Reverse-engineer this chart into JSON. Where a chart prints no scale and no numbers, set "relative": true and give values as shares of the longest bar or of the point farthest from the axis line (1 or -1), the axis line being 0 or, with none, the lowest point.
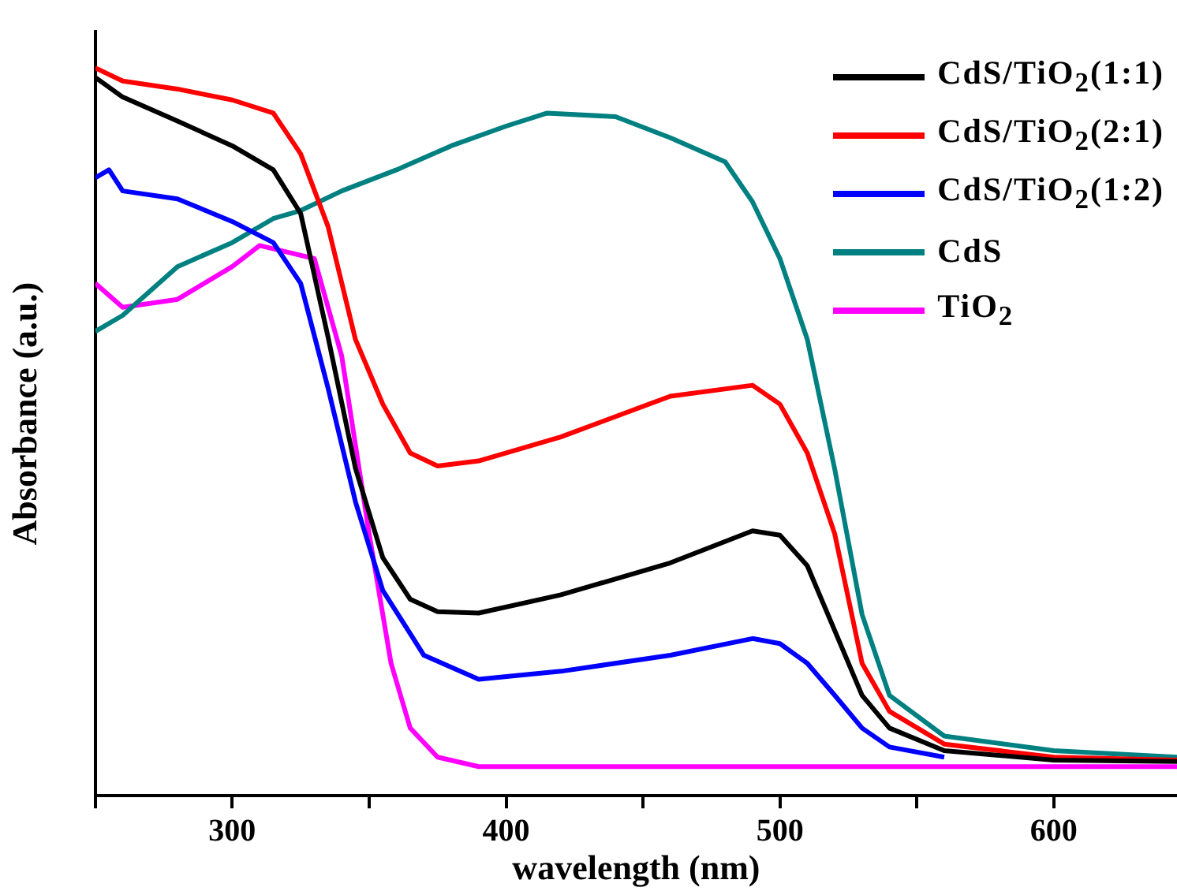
{
  "chart_data": {
    "type": "line",
    "relative": true,
    "xlabel": "wavelength (nm)",
    "ylabel": "Absorbance (a.u.)",
    "xlim": [
      250,
      645
    ],
    "xticks": [
      {
        "value": 250,
        "label": null
      },
      300,
      {
        "value": 350,
        "label": null
      },
      400,
      {
        "value": 450,
        "label": null
      },
      500,
      {
        "value": 550,
        "label": null
      },
      600
    ],
    "tick_labels": "x",
    "legend": "top right",
    "grid": false,
    "marker": "none",
    "line_style": "solid",
    "series": [
      {
        "name": "CdS/TiO$_{2}$(1:1)",
        "color": "#000000",
        "x": [
          250,
          260,
          280,
          300,
          315,
          325,
          335,
          345,
          355,
          365,
          375,
          390,
          420,
          460,
          490,
          500,
          510,
          520,
          530,
          540,
          560,
          600,
          645
        ],
        "values": [
          0.987,
          0.96,
          0.927,
          0.893,
          0.86,
          0.8,
          0.63,
          0.45,
          0.327,
          0.27,
          0.253,
          0.251,
          0.276,
          0.32,
          0.364,
          0.358,
          0.316,
          0.227,
          0.138,
          0.093,
          0.062,
          0.049,
          0.047
        ]
      },
      {
        "name": "CdS/TiO$_{2}$(2:1)",
        "color": "#ff0000",
        "x": [
          250,
          260,
          280,
          300,
          315,
          325,
          335,
          345,
          355,
          365,
          375,
          390,
          420,
          460,
          490,
          500,
          510,
          520,
          530,
          540,
          560,
          600,
          645
        ],
        "values": [
          1.0,
          0.982,
          0.971,
          0.956,
          0.938,
          0.882,
          0.782,
          0.627,
          0.538,
          0.471,
          0.453,
          0.46,
          0.493,
          0.549,
          0.564,
          0.538,
          0.471,
          0.36,
          0.182,
          0.116,
          0.071,
          0.053,
          0.049
        ]
      },
      {
        "name": "CdS/TiO$_{2}$(1:2)",
        "color": "#0000ff",
        "x": [
          250,
          255,
          260,
          280,
          300,
          315,
          325,
          335,
          345,
          355,
          370,
          390,
          420,
          460,
          490,
          500,
          510,
          520,
          530,
          540,
          560
        ],
        "values": [
          0.849,
          0.86,
          0.831,
          0.82,
          0.789,
          0.76,
          0.704,
          0.56,
          0.404,
          0.282,
          0.193,
          0.16,
          0.171,
          0.193,
          0.216,
          0.209,
          0.182,
          0.138,
          0.093,
          0.067,
          0.053
        ]
      },
      {
        "name": "CdS",
        "color": "#008080",
        "x": [
          250,
          260,
          280,
          300,
          315,
          325,
          340,
          360,
          380,
          400,
          415,
          440,
          460,
          480,
          490,
          500,
          510,
          520,
          530,
          540,
          560,
          600,
          645
        ],
        "values": [
          0.638,
          0.66,
          0.727,
          0.76,
          0.793,
          0.804,
          0.831,
          0.86,
          0.893,
          0.92,
          0.938,
          0.933,
          0.904,
          0.871,
          0.816,
          0.738,
          0.627,
          0.449,
          0.249,
          0.138,
          0.082,
          0.062,
          0.053
        ]
      },
      {
        "name": "TiO$_{2}$",
        "color": "#ff00ff",
        "x": [
          250,
          260,
          280,
          300,
          310,
          320,
          330,
          340,
          350,
          358,
          365,
          375,
          390,
          645
        ],
        "values": [
          0.704,
          0.671,
          0.682,
          0.727,
          0.756,
          0.747,
          0.738,
          0.604,
          0.36,
          0.182,
          0.093,
          0.053,
          0.04,
          0.04
        ]
      }
    ]
  }
}
